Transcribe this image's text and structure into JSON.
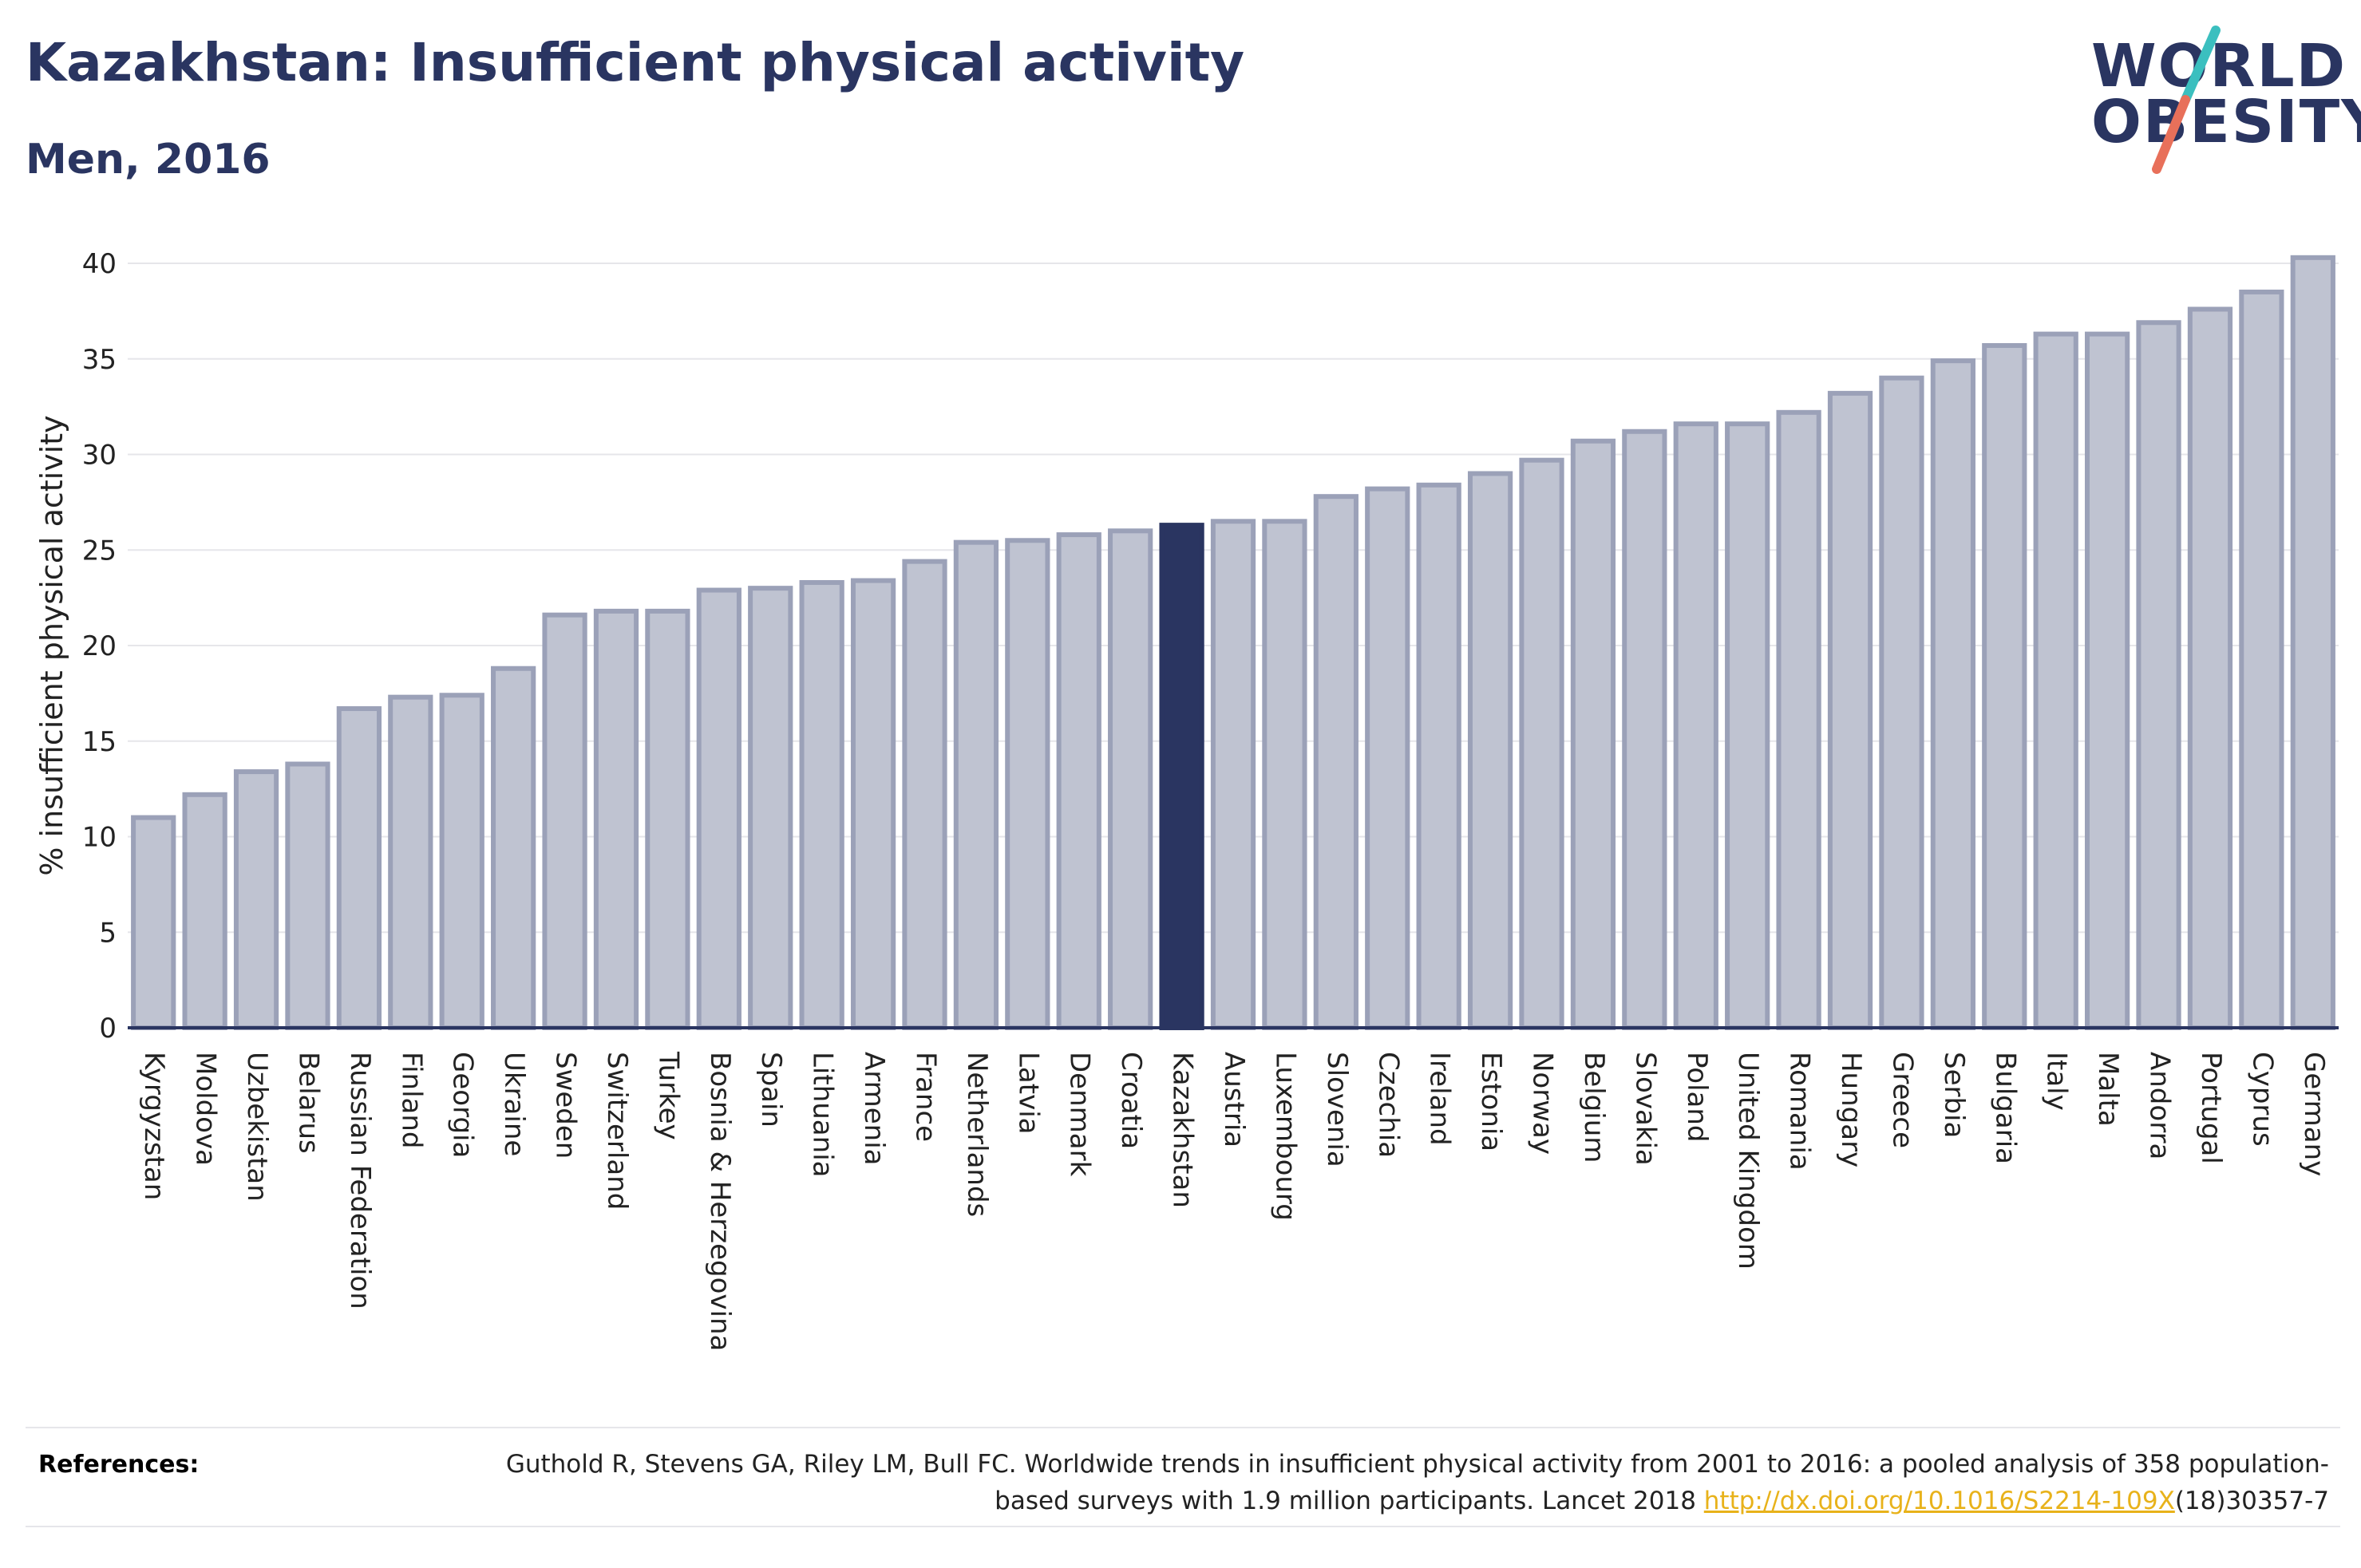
{
  "header": {
    "title": "Kazakhstan: Insufficient physical activity",
    "subtitle": "Men, 2016"
  },
  "logo": {
    "line1": "WORLD",
    "line2": "OBESITY",
    "colors": {
      "text": "#2a3561",
      "slash_top": "#3bbfbf",
      "slash_bottom": "#e8705a"
    }
  },
  "colors": {
    "bar_fill": "#bfc3d1",
    "bar_stroke": "#9ba1b8",
    "highlight_fill": "#2a3561",
    "grid": "#e6e6ea",
    "axis": "#2a3561"
  },
  "chart_data": {
    "type": "bar",
    "title": "Kazakhstan: Insufficient physical activity",
    "subtitle": "Men, 2016",
    "ylabel": "% insufficient physical activity",
    "xlabel": "",
    "ylim": [
      0,
      40
    ],
    "yticks": [
      0,
      5,
      10,
      15,
      20,
      25,
      30,
      35,
      40
    ],
    "grid": true,
    "highlight": "Kazakhstan",
    "categories": [
      "Kyrgyzstan",
      "Moldova",
      "Uzbekistan",
      "Belarus",
      "Russian Federation",
      "Finland",
      "Georgia",
      "Ukraine",
      "Sweden",
      "Switzerland",
      "Turkey",
      "Bosnia & Herzegovina",
      "Spain",
      "Lithuania",
      "Armenia",
      "France",
      "Netherlands",
      "Latvia",
      "Denmark",
      "Croatia",
      "Kazakhstan",
      "Austria",
      "Luxembourg",
      "Slovenia",
      "Czechia",
      "Ireland",
      "Estonia",
      "Norway",
      "Belgium",
      "Slovakia",
      "Poland",
      "United Kingdom",
      "Romania",
      "Hungary",
      "Greece",
      "Serbia",
      "Bulgaria",
      "Italy",
      "Malta",
      "Andorra",
      "Portugal",
      "Cyprus",
      "Germany"
    ],
    "values": [
      11.0,
      12.2,
      13.4,
      13.8,
      16.7,
      17.3,
      17.4,
      18.8,
      21.6,
      21.8,
      21.8,
      22.9,
      23.0,
      23.3,
      23.4,
      24.4,
      25.4,
      25.5,
      25.8,
      26.0,
      26.3,
      26.5,
      26.5,
      27.8,
      28.2,
      28.4,
      29.0,
      29.7,
      30.7,
      31.2,
      31.6,
      31.6,
      32.2,
      33.2,
      34.0,
      34.9,
      35.7,
      36.3,
      36.3,
      36.9,
      37.6,
      38.5,
      40.3
    ]
  },
  "references": {
    "label": "References:",
    "text_before_link": "Guthold R, Stevens GA, Riley LM, Bull FC. Worldwide trends in insufficient physical activity from 2001 to 2016: a pooled analysis of 358 population-based surveys with 1.9 million participants. Lancet 2018 ",
    "link_text": "http://dx.doi.org/10.1016/S2214-109X",
    "text_after_link": "(18)30357-7"
  }
}
